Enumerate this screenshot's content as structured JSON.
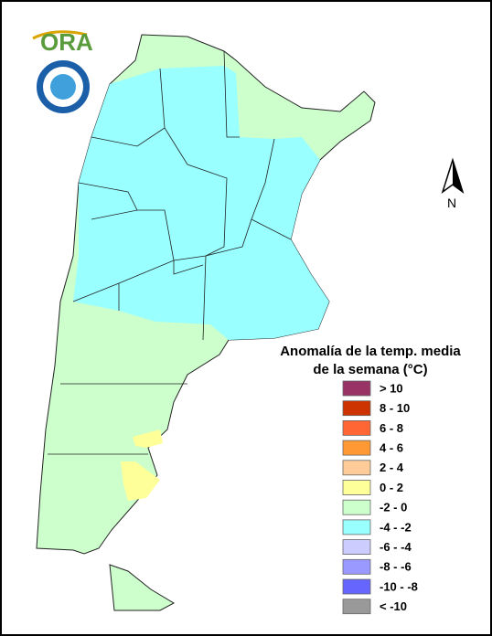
{
  "logo": {
    "text": "ORA"
  },
  "north_arrow": {
    "label": "N"
  },
  "legend": {
    "title_lines": [
      "Anomalía de la temp. media",
      "de la semana (°C)"
    ],
    "items": [
      {
        "label": "> 10",
        "color": "#993366"
      },
      {
        "label": "8 - 10",
        "color": "#cc3300"
      },
      {
        "label": "6 - 8",
        "color": "#ff6633"
      },
      {
        "label": "4 - 6",
        "color": "#ff9933"
      },
      {
        "label": "2 - 4",
        "color": "#ffcc99"
      },
      {
        "label": "0 - 2",
        "color": "#ffff99"
      },
      {
        "label": "-2 - 0",
        "color": "#ccffcc"
      },
      {
        "label": "-4 - -2",
        "color": "#99ffff"
      },
      {
        "label": "-6 - -4",
        "color": "#ccccff"
      },
      {
        "label": "-8 - -6",
        "color": "#9999ff"
      },
      {
        "label": "-10 - -8",
        "color": "#6666ff"
      },
      {
        "label": "< -10",
        "color": "#999999"
      }
    ]
  }
}
